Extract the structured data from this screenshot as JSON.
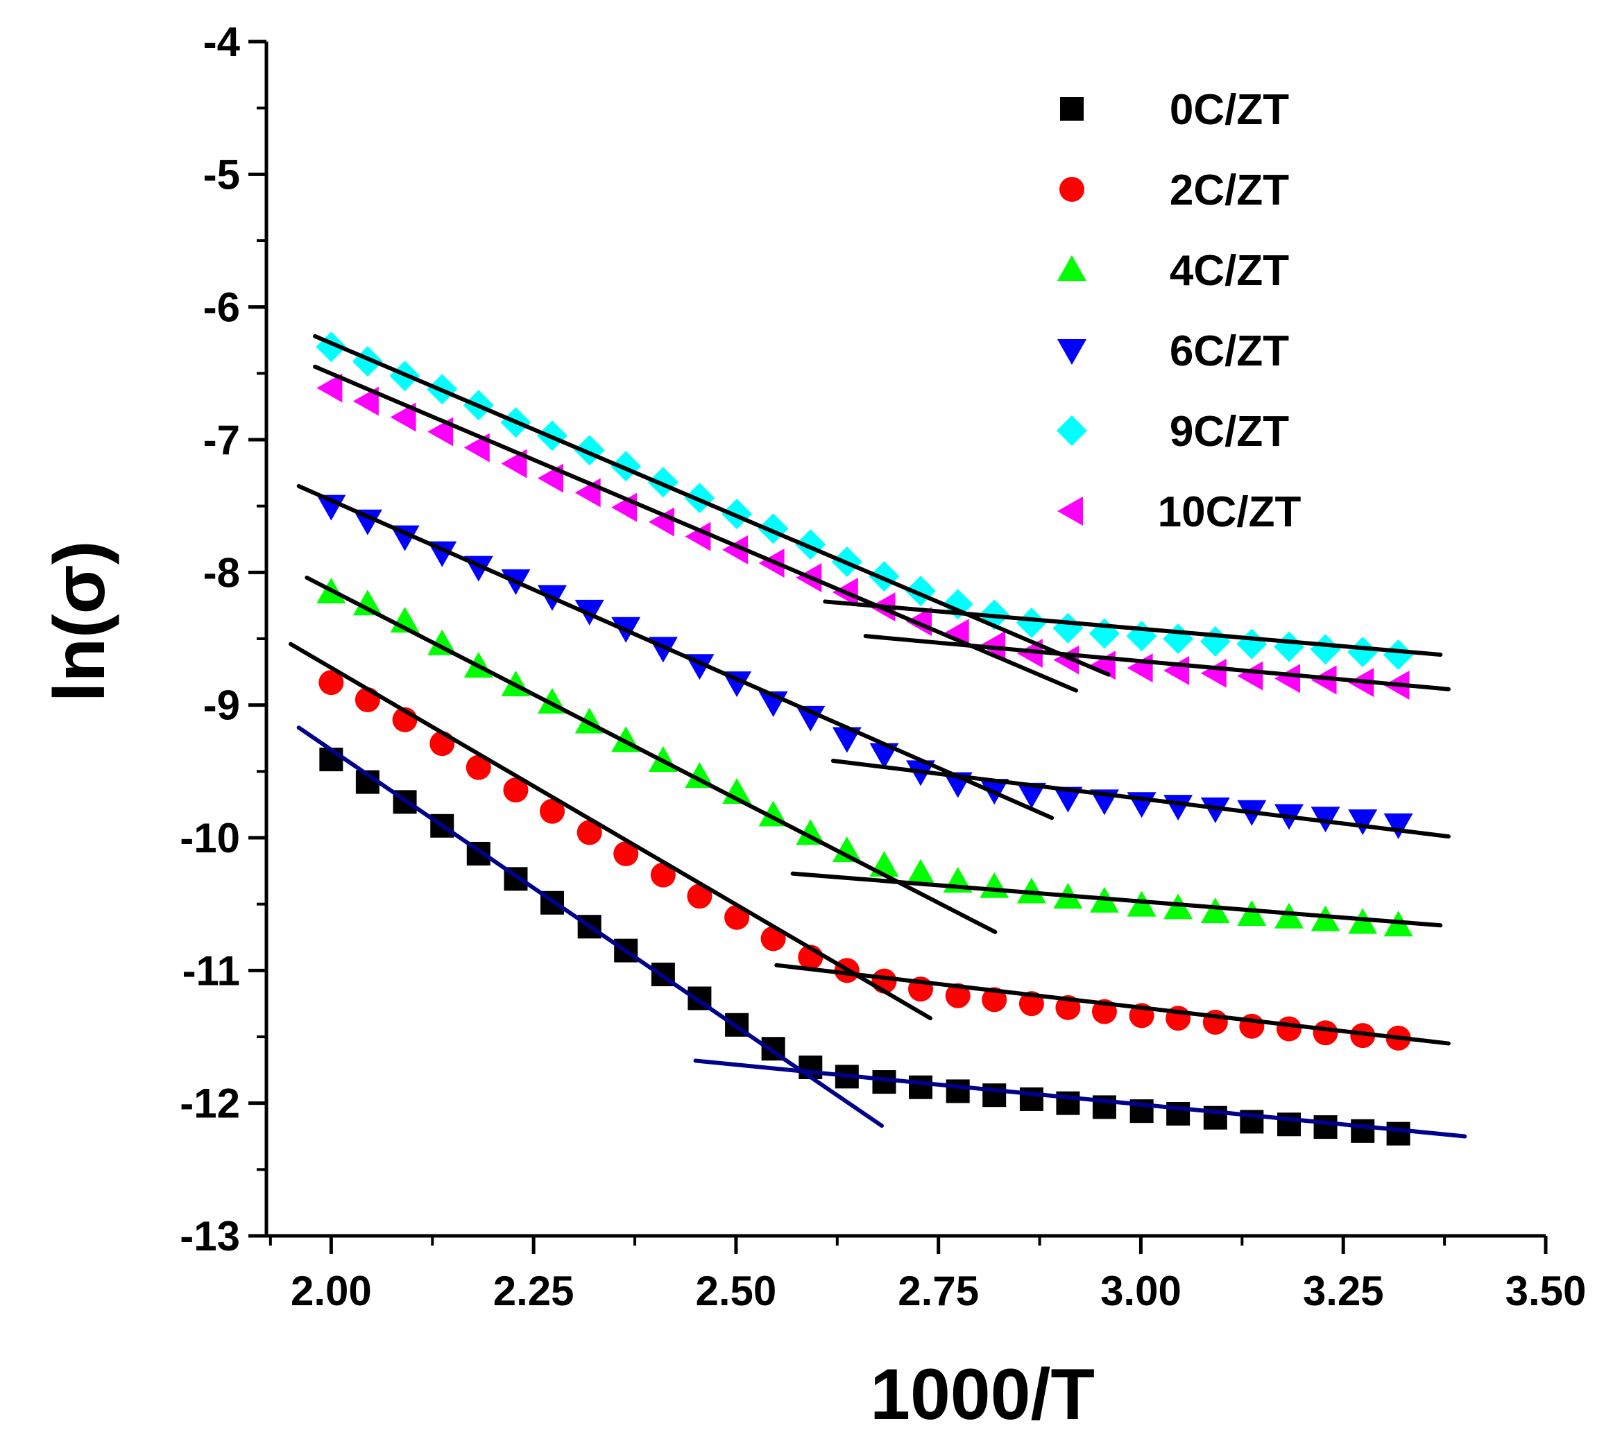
{
  "chart_data": {
    "type": "scatter",
    "title": "",
    "xlabel": "1000/T",
    "ylabel": "ln(σ)",
    "xlim": [
      1.92,
      3.5
    ],
    "ylim": [
      -13,
      -4
    ],
    "xticks": [
      "2.00",
      "2.25",
      "2.50",
      "2.75",
      "3.00",
      "3.25",
      "3.50"
    ],
    "yticks": [
      "-4",
      "-5",
      "-6",
      "-7",
      "-8",
      "-9",
      "-10",
      "-11",
      "-12",
      "-13"
    ],
    "legend_position": "top-right",
    "x": [
      2.0,
      2.045,
      2.091,
      2.137,
      2.182,
      2.228,
      2.273,
      2.319,
      2.364,
      2.41,
      2.455,
      2.501,
      2.546,
      2.592,
      2.637,
      2.683,
      2.728,
      2.774,
      2.819,
      2.865,
      2.91,
      2.955,
      3.001,
      3.046,
      3.092,
      3.137,
      3.183,
      3.228,
      3.274,
      3.318
    ],
    "series": [
      {
        "name": "0C/ZT",
        "marker": "square",
        "color": "#000000",
        "values": [
          -9.41,
          -9.58,
          -9.73,
          -9.91,
          -10.12,
          -10.31,
          -10.49,
          -10.67,
          -10.85,
          -11.03,
          -11.21,
          -11.41,
          -11.59,
          -11.73,
          -11.8,
          -11.84,
          -11.88,
          -11.91,
          -11.94,
          -11.97,
          -12.0,
          -12.03,
          -12.06,
          -12.08,
          -12.11,
          -12.14,
          -12.16,
          -12.18,
          -12.21,
          -12.23
        ],
        "fit_lines": [
          {
            "x": [
              1.96,
              2.68
            ],
            "y": [
              -9.17,
              -12.17
            ],
            "color": "#00008b"
          },
          {
            "x": [
              2.45,
              3.4
            ],
            "y": [
              -11.68,
              -12.25
            ],
            "color": "#00008b"
          }
        ]
      },
      {
        "name": "2C/ZT",
        "marker": "circle",
        "color": "#ff0000",
        "values": [
          -8.83,
          -8.96,
          -9.11,
          -9.29,
          -9.47,
          -9.64,
          -9.8,
          -9.96,
          -10.12,
          -10.28,
          -10.44,
          -10.6,
          -10.76,
          -10.9,
          -11.0,
          -11.08,
          -11.14,
          -11.19,
          -11.22,
          -11.25,
          -11.28,
          -11.31,
          -11.34,
          -11.36,
          -11.39,
          -11.42,
          -11.44,
          -11.47,
          -11.49,
          -11.51
        ],
        "fit_lines": [
          {
            "x": [
              1.95,
              2.74
            ],
            "y": [
              -8.54,
              -11.36
            ],
            "color": "#000000"
          },
          {
            "x": [
              2.55,
              3.38
            ],
            "y": [
              -10.96,
              -11.55
            ],
            "color": "#000000"
          }
        ]
      },
      {
        "name": "4C/ZT",
        "marker": "triangle-up",
        "color": "#00ff00",
        "values": [
          -8.15,
          -8.24,
          -8.37,
          -8.54,
          -8.71,
          -8.85,
          -8.98,
          -9.13,
          -9.27,
          -9.42,
          -9.54,
          -9.66,
          -9.83,
          -9.97,
          -10.1,
          -10.21,
          -10.27,
          -10.33,
          -10.37,
          -10.41,
          -10.45,
          -10.48,
          -10.51,
          -10.53,
          -10.56,
          -10.58,
          -10.6,
          -10.62,
          -10.64,
          -10.66
        ],
        "fit_lines": [
          {
            "x": [
              1.97,
              2.82
            ],
            "y": [
              -8.04,
              -10.71
            ],
            "color": "#000000"
          },
          {
            "x": [
              2.57,
              3.37
            ],
            "y": [
              -10.27,
              -10.66
            ],
            "color": "#000000"
          }
        ]
      },
      {
        "name": "6C/ZT",
        "marker": "triangle-down",
        "color": "#0000ff",
        "values": [
          -7.5,
          -7.61,
          -7.73,
          -7.85,
          -7.96,
          -8.06,
          -8.18,
          -8.29,
          -8.42,
          -8.57,
          -8.7,
          -8.83,
          -8.98,
          -9.09,
          -9.25,
          -9.37,
          -9.5,
          -9.59,
          -9.64,
          -9.67,
          -9.7,
          -9.72,
          -9.74,
          -9.76,
          -9.78,
          -9.8,
          -9.83,
          -9.85,
          -9.87,
          -9.9
        ],
        "fit_lines": [
          {
            "x": [
              1.96,
              2.89
            ],
            "y": [
              -7.35,
              -9.85
            ],
            "color": "#000000"
          },
          {
            "x": [
              2.62,
              3.38
            ],
            "y": [
              -9.42,
              -9.99
            ],
            "color": "#000000"
          }
        ]
      },
      {
        "name": "9C/ZT",
        "marker": "diamond",
        "color": "#00ffff",
        "values": [
          -6.3,
          -6.41,
          -6.52,
          -6.62,
          -6.74,
          -6.87,
          -6.97,
          -7.08,
          -7.2,
          -7.32,
          -7.44,
          -7.56,
          -7.67,
          -7.79,
          -7.92,
          -8.03,
          -8.14,
          -8.24,
          -8.32,
          -8.38,
          -8.42,
          -8.46,
          -8.48,
          -8.5,
          -8.52,
          -8.54,
          -8.56,
          -8.58,
          -8.6,
          -8.62
        ],
        "fit_lines": [
          {
            "x": [
              1.98,
              2.96
            ],
            "y": [
              -6.22,
              -8.77
            ],
            "color": "#000000"
          },
          {
            "x": [
              2.61,
              3.37
            ],
            "y": [
              -8.22,
              -8.62
            ],
            "color": "#000000"
          }
        ]
      },
      {
        "name": "10C/ZT",
        "marker": "triangle-left",
        "color": "#ff00ff",
        "values": [
          -6.61,
          -6.71,
          -6.83,
          -6.94,
          -7.06,
          -7.18,
          -7.29,
          -7.4,
          -7.51,
          -7.62,
          -7.73,
          -7.83,
          -7.93,
          -8.04,
          -8.15,
          -8.26,
          -8.37,
          -8.46,
          -8.55,
          -8.61,
          -8.66,
          -8.7,
          -8.72,
          -8.74,
          -8.76,
          -8.78,
          -8.8,
          -8.81,
          -8.83,
          -8.85
        ],
        "fit_lines": [
          {
            "x": [
              1.98,
              2.92
            ],
            "y": [
              -6.45,
              -8.89
            ],
            "color": "#000000"
          },
          {
            "x": [
              2.66,
              3.38
            ],
            "y": [
              -8.48,
              -8.88
            ],
            "color": "#000000"
          }
        ]
      }
    ]
  }
}
